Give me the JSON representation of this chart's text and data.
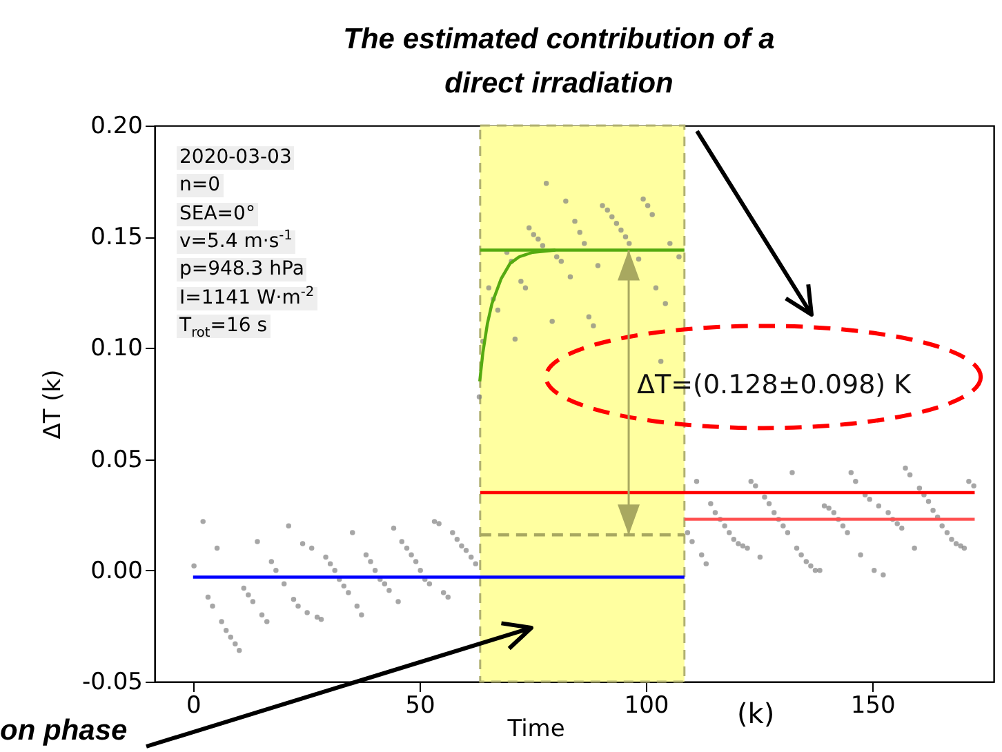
{
  "chart_data": {
    "type": "line",
    "xlabel": "Time",
    "ylabel": "ΔT (k)",
    "xlim": [
      -8.5,
      176.8
    ],
    "xticks": [
      0,
      50,
      100,
      150
    ],
    "ylim": [
      -0.05,
      0.2
    ],
    "yticks": [
      {
        "value": -0.05,
        "label": "-0.05"
      },
      {
        "value": 0,
        "label": "0.00"
      },
      {
        "value": 0.05,
        "label": "0.05"
      },
      {
        "value": 0.1,
        "label": "0.10"
      },
      {
        "value": 0.15,
        "label": "0.15"
      },
      {
        "value": 0.2,
        "label": "0.20"
      }
    ],
    "grid": false,
    "bands": [
      {
        "axis": "x",
        "from": 63.4,
        "to": 108.5,
        "color": "#ffffa0"
      }
    ],
    "series": [
      {
        "type": "scatter",
        "marker": "circle",
        "color": "#808080",
        "x": [
          0.2,
          2.2,
          3.3,
          4.3,
          5.3,
          6.3,
          7.3,
          8.3,
          9.3,
          10.2,
          11.2,
          12.2,
          13.2,
          14.2,
          15.2,
          16.3,
          17.3,
          18.3,
          20.1,
          21.1,
          22.2,
          23.2,
          24.2,
          25.2,
          26.2,
          27.4,
          28.3,
          29.3,
          30.3,
          31.3,
          32.3,
          33.3,
          34.3,
          35.2,
          36.2,
          37.2,
          38.2,
          39.2,
          40.2,
          41.3,
          42.3,
          43.3,
          44.3,
          45.3,
          46.1,
          47.2,
          48.2,
          49.2,
          50.2,
          51.2,
          52.2,
          53.3,
          54.3,
          55.3,
          56.3,
          57.3,
          58.3,
          59.3,
          60.3,
          61.4,
          62.4,
          63.2,
          64.0,
          65.3,
          66.3,
          67.3,
          69.3,
          70.3,
          71.1,
          72.4,
          73.4,
          74.2,
          75.2,
          76.2,
          77.2,
          78.0,
          79.3,
          80.3,
          81.3,
          82.3,
          83.3,
          84.3,
          85.4,
          86.4,
          87.4,
          88.4,
          89.4,
          90.4,
          91.5,
          92.5,
          93.5,
          94.5,
          95.5,
          96.3,
          98.4,
          99.4,
          100.4,
          101.4,
          102.2,
          103.3,
          104.3,
          105.3,
          107.3,
          109.2,
          110.2,
          111.2,
          112.3,
          113.3,
          114.3,
          115.3,
          116.4,
          117.4,
          118.4,
          119.4,
          120.4,
          121.4,
          122.4,
          123.2,
          124.2,
          125.2,
          126.2,
          127.2,
          128.3,
          129.3,
          130.3,
          131.3,
          132.3,
          133.3,
          134.3,
          135.4,
          136.4,
          137.4,
          138.4,
          139.4,
          140.4,
          141.5,
          142.5,
          143.5,
          144.5,
          145.3,
          146.3,
          147.4,
          148.4,
          149.4,
          150.4,
          151.4,
          152.4,
          153.5,
          154.5,
          155.5,
          156.5,
          157.3,
          158.3,
          159.3,
          160.4,
          161.4,
          162.4,
          163.4,
          164.4,
          165.4,
          166.5,
          167.5,
          168.5,
          169.5,
          170.3,
          171.3,
          172.4
        ],
        "values": [
          0.002,
          0.022,
          -0.012,
          -0.016,
          0.01,
          -0.023,
          -0.027,
          -0.03,
          -0.033,
          -0.036,
          -0.008,
          -0.011,
          -0.014,
          0.013,
          -0.02,
          -0.023,
          0.004,
          0.0,
          -0.006,
          0.02,
          -0.013,
          -0.016,
          0.012,
          -0.019,
          0.01,
          -0.021,
          -0.022,
          0.006,
          0.003,
          0.0,
          -0.004,
          -0.007,
          -0.01,
          0.017,
          -0.016,
          -0.02,
          0.007,
          0.004,
          0.0,
          -0.004,
          -0.006,
          -0.009,
          0.019,
          -0.014,
          0.013,
          0.01,
          0.007,
          0.004,
          0.0,
          -0.004,
          -0.006,
          0.022,
          0.021,
          -0.01,
          -0.012,
          0.017,
          0.014,
          0.011,
          0.009,
          0.006,
          0.003,
          0.078,
          0.103,
          0.127,
          0.122,
          0.117,
          0.143,
          0.139,
          0.104,
          0.13,
          0.127,
          0.154,
          0.151,
          0.149,
          0.146,
          0.174,
          0.112,
          0.141,
          0.139,
          0.166,
          0.132,
          0.157,
          0.152,
          0.147,
          0.114,
          0.11,
          0.137,
          0.164,
          0.162,
          0.159,
          0.156,
          0.153,
          0.15,
          0.147,
          0.14,
          0.167,
          0.164,
          0.16,
          0.127,
          0.094,
          0.12,
          0.147,
          0.141,
          0.017,
          0.013,
          0.04,
          0.007,
          0.003,
          0.03,
          0.026,
          0.023,
          0.02,
          0.017,
          0.014,
          0.012,
          0.011,
          0.01,
          0.04,
          0.038,
          0.006,
          0.033,
          0.03,
          0.026,
          0.023,
          0.02,
          0.017,
          0.044,
          0.01,
          0.007,
          0.004,
          0.002,
          0.0,
          0.0,
          0.029,
          0.028,
          0.026,
          0.023,
          0.02,
          0.017,
          0.044,
          0.04,
          0.007,
          0.034,
          0.032,
          0.0,
          0.029,
          -0.002,
          0.026,
          0.023,
          0.021,
          0.019,
          0.046,
          0.043,
          0.01,
          0.037,
          0.034,
          0.031,
          0.027,
          0.024,
          0.02,
          0.017,
          0.014,
          0.012,
          0.011,
          0.01,
          0.04,
          0.038
        ]
      },
      {
        "type": "line",
        "color": "#0000ff",
        "x": [
          0,
          108.5
        ],
        "values": [
          -0.003,
          -0.003
        ]
      },
      {
        "type": "line",
        "color": "#ff0000",
        "x": [
          63.4,
          172.6
        ],
        "values": [
          0.035,
          0.035
        ]
      },
      {
        "type": "line",
        "color": "#ff5050",
        "x": [
          108.5,
          172.6
        ],
        "values": [
          0.023,
          0.023
        ]
      },
      {
        "type": "line",
        "color": "#55aa11",
        "x": [
          63.4,
          108.5
        ],
        "values": [
          0.144,
          0.144
        ]
      },
      {
        "type": "line",
        "color": "#55aa11",
        "x": [
          63.3,
          64,
          65,
          66,
          68,
          70,
          72,
          75,
          80
        ],
        "values": [
          0.085,
          0.098,
          0.111,
          0.12,
          0.131,
          0.138,
          0.141,
          0.143,
          0.144
        ]
      },
      {
        "type": "line",
        "color": "#a8a860",
        "line_style": "dashed",
        "x": [
          63.4,
          108.5
        ],
        "values": [
          0.016,
          0.016
        ]
      }
    ],
    "annotations": [
      "2020-03-03",
      "n=0",
      "SEA=0°",
      "v=5.4 m·s$^{-1}$",
      "p=948.3 hPa",
      "I=1141 W·m$^{-2}$",
      "T$_{rot}$=16 s",
      "(k)",
      "The estimated contribution of a direct irradiation",
      "on phase",
      "ΔT=(0.128±0.098) K"
    ]
  }
}
